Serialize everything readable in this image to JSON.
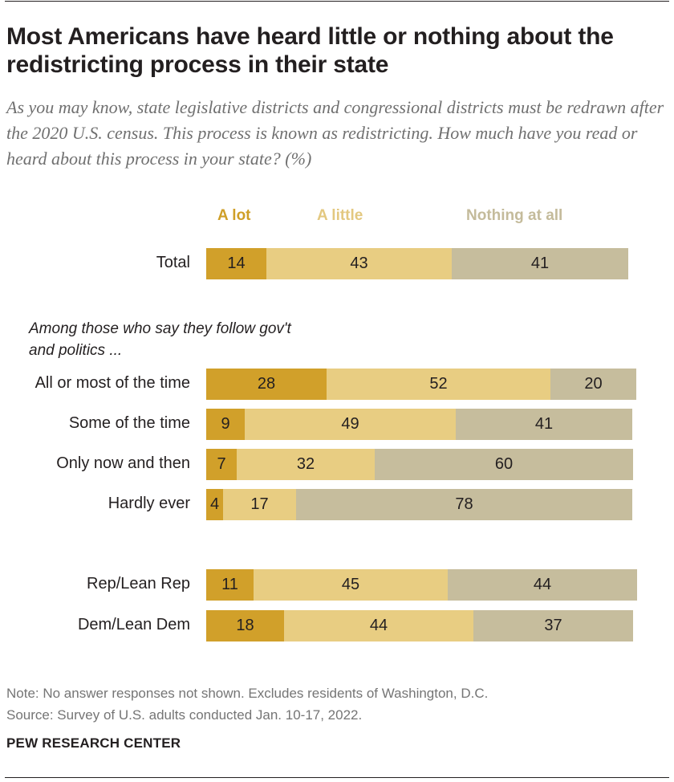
{
  "title": "Most Americans have heard little or nothing about the redistricting process in their state",
  "subtitle": "As you may know, state legislative districts and congressional districts must be redrawn after the 2020 U.S. census. This process is known as redistricting. How much have you read or heard about this process in your state? (%)",
  "group_note": "Among those who say they follow gov't and politics ...",
  "note": "Note: No answer responses not shown. Excludes residents of Washington, D.C.",
  "source": "Source: Survey of U.S. adults conducted Jan. 10-17, 2022.",
  "brand": "PEW RESEARCH CENTER",
  "colors": {
    "a_lot": "#d1a02a",
    "a_little": "#e8cd82",
    "nothing": "#c6bd9d",
    "legend_a_lot": "#cf9f27",
    "legend_a_little": "#e3c880",
    "legend_nothing": "#c4bb9b"
  },
  "chart_data": {
    "type": "bar",
    "orientation": "horizontal",
    "stacked": true,
    "legend_position": "top",
    "xlim": [
      0,
      100
    ],
    "categories": [
      "Total",
      "All or most of the time",
      "Some of the time",
      "Only now and then",
      "Hardly ever",
      "Rep/Lean Rep",
      "Dem/Lean Dem"
    ],
    "series": [
      {
        "name": "A lot",
        "values": [
          14,
          28,
          9,
          7,
          4,
          11,
          18
        ]
      },
      {
        "name": "A little",
        "values": [
          43,
          52,
          49,
          32,
          17,
          45,
          44
        ]
      },
      {
        "name": "Nothing at all",
        "values": [
          41,
          20,
          41,
          60,
          78,
          44,
          37
        ]
      }
    ]
  }
}
